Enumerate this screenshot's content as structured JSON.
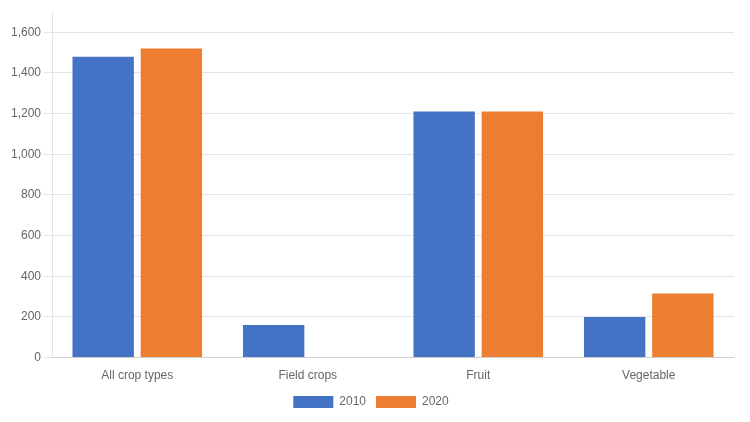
{
  "chart_data": {
    "type": "bar",
    "categories": [
      "All crop types",
      "Field crops",
      "Fruit",
      "Vegetable"
    ],
    "series": [
      {
        "name": "2010",
        "color": "#4472C4",
        "values": [
          1480,
          160,
          1210,
          200
        ]
      },
      {
        "name": "2020",
        "color": "#ED7D31",
        "values": [
          1520,
          0,
          1210,
          315
        ]
      }
    ],
    "ylim": [
      0,
      1700
    ],
    "yticks": [
      0,
      200,
      400,
      600,
      800,
      {
        "value": 1000,
        "label": "1,000"
      },
      {
        "value": 1200,
        "label": "1,200"
      },
      {
        "value": 1400,
        "label": "1,400"
      },
      {
        "value": 1600,
        "label": "1,600"
      }
    ],
    "grid": true,
    "legend": "bottom"
  }
}
